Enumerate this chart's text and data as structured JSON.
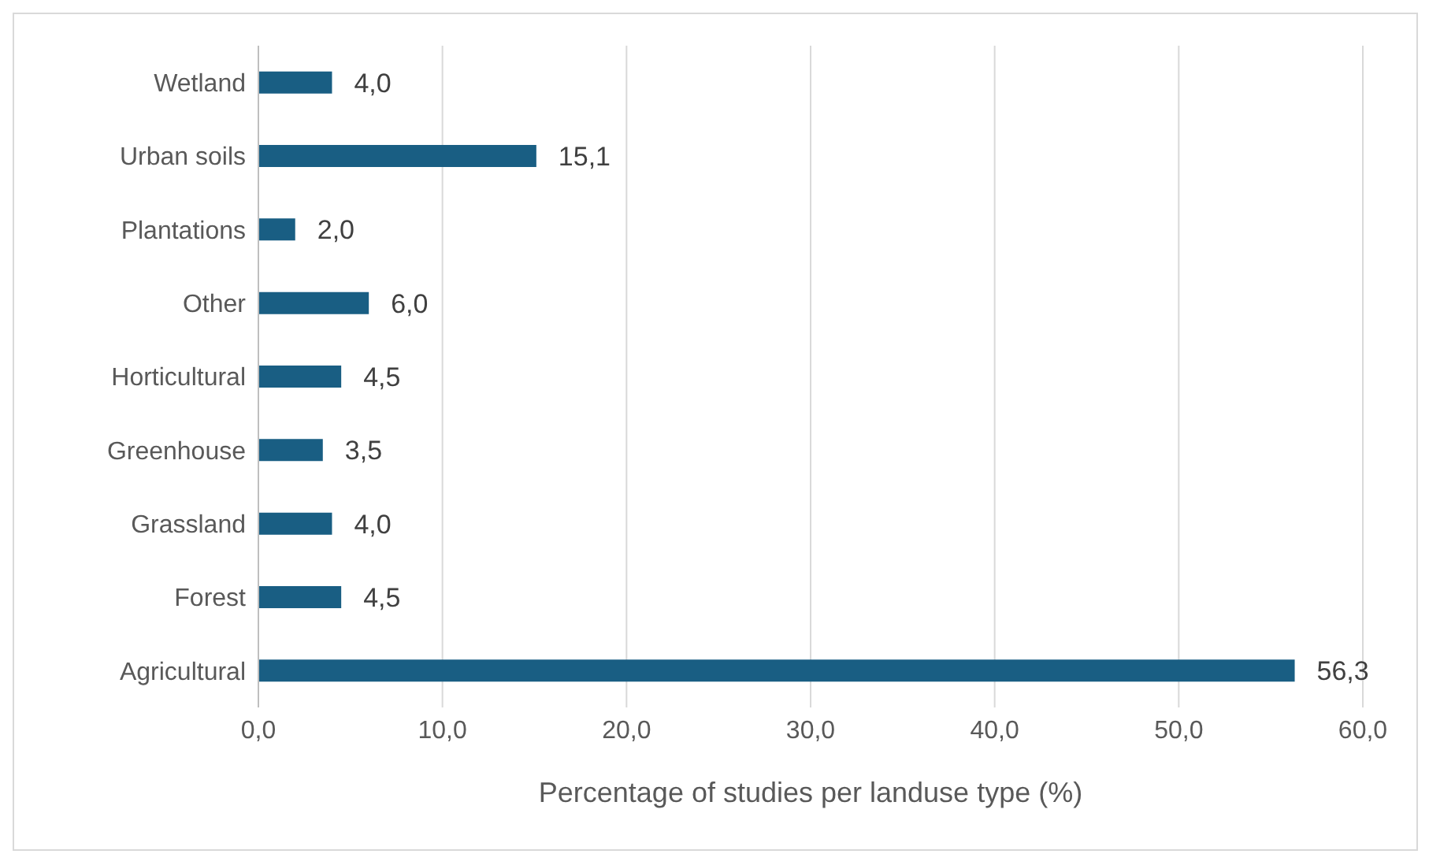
{
  "chart_data": {
    "type": "bar",
    "orientation": "horizontal",
    "xlabel": "Percentage of studies per landuse type (%)",
    "categories": [
      "Wetland",
      "Urban soils",
      "Plantations",
      "Other",
      "Horticultural",
      "Greenhouse",
      "Grassland",
      "Forest",
      "Agricultural"
    ],
    "values": [
      4.0,
      15.1,
      2.0,
      6.0,
      4.5,
      3.5,
      4.0,
      4.5,
      56.3
    ],
    "value_labels": [
      "4,0",
      "15,1",
      "2,0",
      "6,0",
      "4,5",
      "3,5",
      "4,0",
      "4,5",
      "56,3"
    ],
    "color": "#195e83",
    "xlim": [
      0,
      60
    ],
    "xticks": [
      {
        "value": 0,
        "label": "0,0"
      },
      {
        "value": 10,
        "label": "10,0"
      },
      {
        "value": 20,
        "label": "20,0"
      },
      {
        "value": 30,
        "label": "30,0"
      },
      {
        "value": 40,
        "label": "40,0"
      },
      {
        "value": 50,
        "label": "50,0"
      },
      {
        "value": 60,
        "label": "60,0"
      }
    ],
    "grid": "x"
  }
}
